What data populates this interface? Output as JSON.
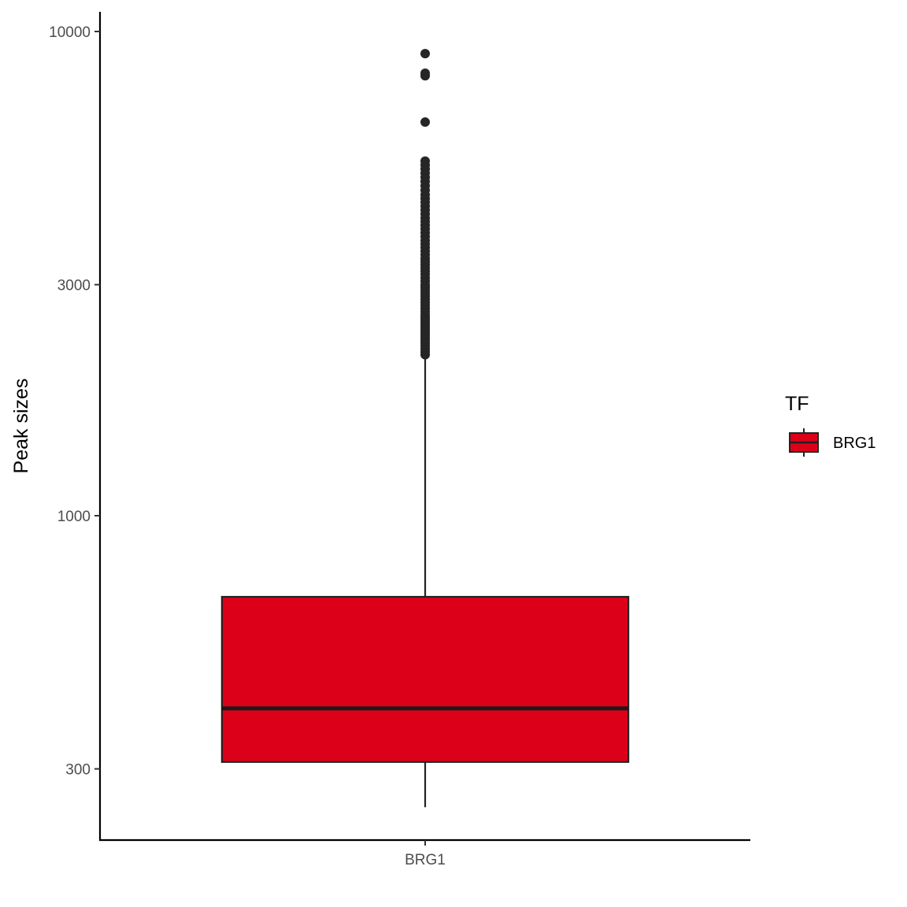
{
  "chart_data": {
    "type": "box",
    "scale_y": "log10",
    "ylabel": "Peak sizes",
    "xlabel": "",
    "y_ticks": [
      300,
      1000,
      3000,
      10000
    ],
    "y_tick_labels": [
      "300",
      "1000",
      "3000",
      "10000"
    ],
    "ylim": [
      230,
      11000
    ],
    "categories": [
      "BRG1"
    ],
    "boxes": [
      {
        "category": "BRG1",
        "whisker_low": 250,
        "q1": 310,
        "median": 400,
        "q3": 680,
        "whisker_high": 2150,
        "fill": "#DC0019",
        "outliers": [
          2150,
          2180,
          2210,
          2240,
          2270,
          2300,
          2330,
          2360,
          2390,
          2420,
          2450,
          2480,
          2510,
          2540,
          2570,
          2600,
          2640,
          2680,
          2720,
          2760,
          2800,
          2840,
          2880,
          2920,
          2960,
          3000,
          3050,
          3100,
          3150,
          3200,
          3250,
          3300,
          3350,
          3400,
          3460,
          3520,
          3580,
          3640,
          3700,
          3770,
          3840,
          3910,
          3980,
          4050,
          4120,
          4200,
          4280,
          4360,
          4440,
          4520,
          4600,
          4700,
          4800,
          4900,
          5000,
          5100,
          5200,
          5300,
          5400,
          6500,
          8100,
          8200,
          9000
        ]
      }
    ],
    "grid": false,
    "legend": {
      "title": "TF",
      "position": "right",
      "entries": [
        {
          "label": "BRG1",
          "color": "#DC0019"
        }
      ]
    }
  }
}
